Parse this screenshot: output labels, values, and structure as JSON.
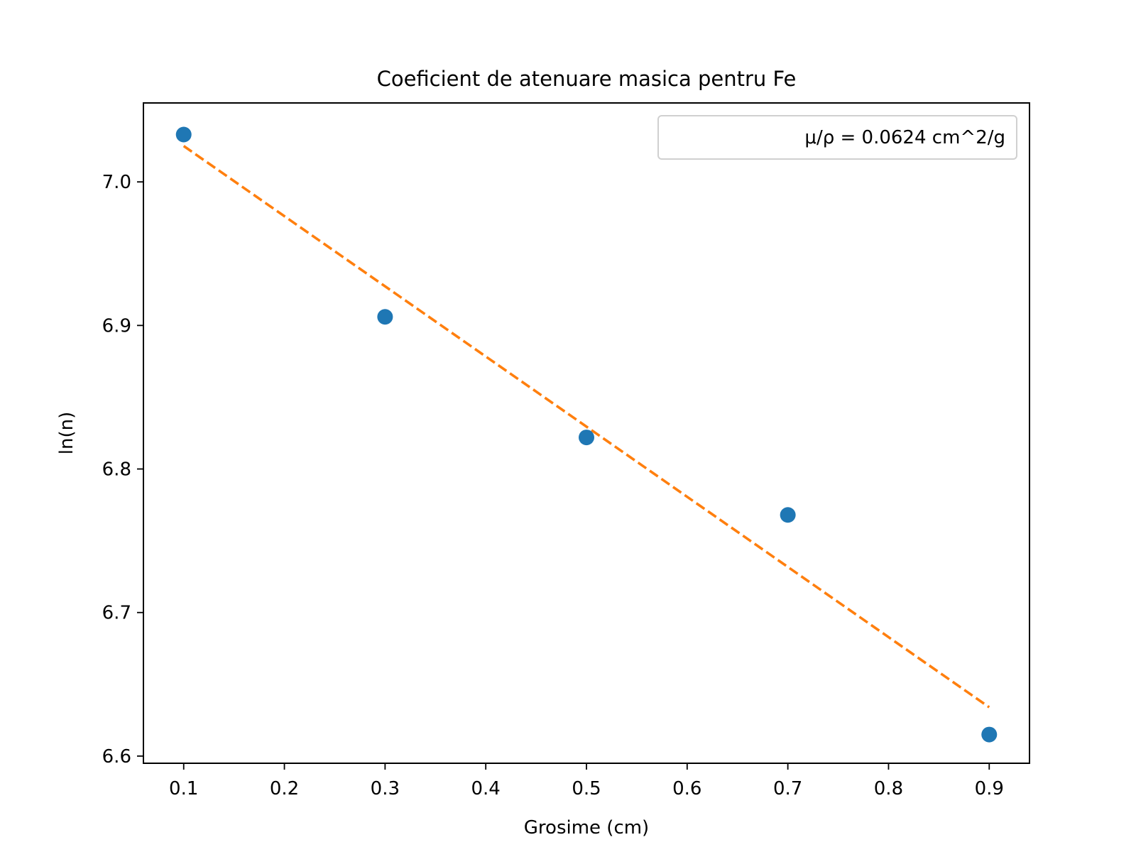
{
  "chart_data": {
    "type": "scatter",
    "title": "Coeficient de atenuare masica pentru Fe",
    "xlabel": "Grosime (cm)",
    "ylabel": "ln(n)",
    "xlim": [
      0.06,
      0.94
    ],
    "ylim": [
      6.595,
      7.055
    ],
    "xticks": [
      "0.1",
      "0.2",
      "0.3",
      "0.4",
      "0.5",
      "0.6",
      "0.7",
      "0.8",
      "0.9"
    ],
    "yticks": [
      "6.6",
      "6.7",
      "6.8",
      "6.9",
      "7.0"
    ],
    "grid": false,
    "legend_position": "top-right",
    "series": [
      {
        "kind": "scatter",
        "color": "#1f77b4",
        "x": [
          0.1,
          0.3,
          0.5,
          0.7,
          0.9
        ],
        "y": [
          7.033,
          6.906,
          6.822,
          6.768,
          6.615
        ]
      },
      {
        "kind": "line",
        "style": "dashed",
        "color": "#ff7f0e",
        "name": "μ/ρ = 0.0624 cm^2/g",
        "x": [
          0.1,
          0.9
        ],
        "y": [
          7.025,
          6.634
        ]
      }
    ]
  }
}
